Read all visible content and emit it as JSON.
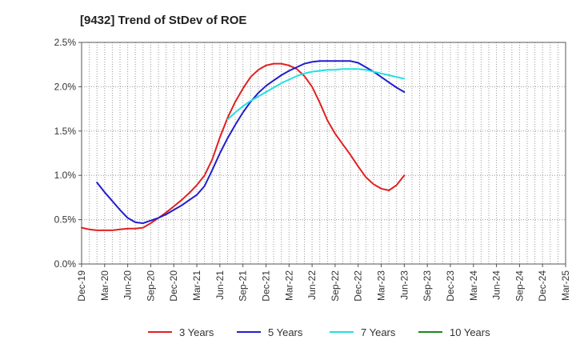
{
  "chart_data": {
    "type": "line",
    "title": "[9432]  Trend of StDev of ROE",
    "xlabel": "",
    "ylabel": "",
    "ylim": [
      0,
      2.5
    ],
    "y_ticks": [
      "0.0%",
      "0.5%",
      "1.0%",
      "1.5%",
      "2.0%",
      "2.5%"
    ],
    "x_ticks": [
      "Dec-19",
      "Mar-20",
      "Jun-20",
      "Sep-20",
      "Dec-20",
      "Mar-21",
      "Jun-21",
      "Sep-21",
      "Dec-21",
      "Mar-22",
      "Jun-22",
      "Sep-22",
      "Dec-22",
      "Mar-23",
      "Jun-23",
      "Sep-23",
      "Dec-23",
      "Mar-24",
      "Jun-24",
      "Sep-24",
      "Dec-24",
      "Mar-25"
    ],
    "grid": true,
    "legend_position": "bottom",
    "series": [
      {
        "name": "3 Years",
        "color": "#e02020",
        "points": [
          [
            0,
            0.41
          ],
          [
            1,
            0.39
          ],
          [
            2,
            0.38
          ],
          [
            3,
            0.38
          ],
          [
            4,
            0.38
          ],
          [
            5,
            0.39
          ],
          [
            6,
            0.4
          ],
          [
            7,
            0.4
          ],
          [
            8,
            0.41
          ],
          [
            9,
            0.46
          ],
          [
            10,
            0.52
          ],
          [
            11,
            0.58
          ],
          [
            12,
            0.65
          ],
          [
            13,
            0.72
          ],
          [
            14,
            0.8
          ],
          [
            15,
            0.89
          ],
          [
            16,
            1.0
          ],
          [
            17,
            1.18
          ],
          [
            18,
            1.43
          ],
          [
            19,
            1.65
          ],
          [
            20,
            1.83
          ],
          [
            21,
            1.98
          ],
          [
            22,
            2.11
          ],
          [
            23,
            2.19
          ],
          [
            24,
            2.24
          ],
          [
            25,
            2.26
          ],
          [
            26,
            2.26
          ],
          [
            27,
            2.24
          ],
          [
            28,
            2.2
          ],
          [
            29,
            2.12
          ],
          [
            30,
            2.0
          ],
          [
            31,
            1.82
          ],
          [
            32,
            1.62
          ],
          [
            33,
            1.47
          ],
          [
            34,
            1.35
          ],
          [
            35,
            1.23
          ],
          [
            36,
            1.1
          ],
          [
            37,
            0.98
          ],
          [
            38,
            0.9
          ],
          [
            39,
            0.85
          ],
          [
            40,
            0.83
          ],
          [
            41,
            0.89
          ],
          [
            42,
            1.0
          ]
        ]
      },
      {
        "name": "5 Years",
        "color": "#1f1fcc",
        "points": [
          [
            2,
            0.92
          ],
          [
            3,
            0.81
          ],
          [
            4,
            0.71
          ],
          [
            5,
            0.61
          ],
          [
            6,
            0.52
          ],
          [
            7,
            0.47
          ],
          [
            8,
            0.46
          ],
          [
            9,
            0.49
          ],
          [
            10,
            0.52
          ],
          [
            11,
            0.56
          ],
          [
            12,
            0.61
          ],
          [
            13,
            0.66
          ],
          [
            14,
            0.72
          ],
          [
            15,
            0.78
          ],
          [
            16,
            0.88
          ],
          [
            17,
            1.06
          ],
          [
            18,
            1.25
          ],
          [
            19,
            1.42
          ],
          [
            20,
            1.57
          ],
          [
            21,
            1.71
          ],
          [
            22,
            1.83
          ],
          [
            23,
            1.93
          ],
          [
            24,
            2.01
          ],
          [
            25,
            2.07
          ],
          [
            26,
            2.13
          ],
          [
            27,
            2.18
          ],
          [
            28,
            2.22
          ],
          [
            29,
            2.26
          ],
          [
            30,
            2.28
          ],
          [
            31,
            2.29
          ],
          [
            32,
            2.29
          ],
          [
            33,
            2.29
          ],
          [
            34,
            2.29
          ],
          [
            35,
            2.29
          ],
          [
            36,
            2.27
          ],
          [
            37,
            2.22
          ],
          [
            38,
            2.17
          ],
          [
            39,
            2.11
          ],
          [
            40,
            2.05
          ],
          [
            41,
            1.99
          ],
          [
            42,
            1.94
          ]
        ]
      },
      {
        "name": "7 Years",
        "color": "#22e0e0",
        "points": [
          [
            19,
            1.63
          ],
          [
            20,
            1.71
          ],
          [
            21,
            1.78
          ],
          [
            22,
            1.84
          ],
          [
            23,
            1.89
          ],
          [
            24,
            1.94
          ],
          [
            25,
            1.99
          ],
          [
            26,
            2.04
          ],
          [
            27,
            2.08
          ],
          [
            28,
            2.12
          ],
          [
            29,
            2.15
          ],
          [
            30,
            2.17
          ],
          [
            31,
            2.18
          ],
          [
            32,
            2.19
          ],
          [
            33,
            2.19
          ],
          [
            34,
            2.2
          ],
          [
            35,
            2.2
          ],
          [
            36,
            2.2
          ],
          [
            37,
            2.19
          ],
          [
            38,
            2.17
          ],
          [
            39,
            2.15
          ],
          [
            40,
            2.13
          ],
          [
            41,
            2.11
          ],
          [
            42,
            2.09
          ]
        ]
      },
      {
        "name": "10 Years",
        "color": "#1a8a1a",
        "points": []
      }
    ]
  }
}
